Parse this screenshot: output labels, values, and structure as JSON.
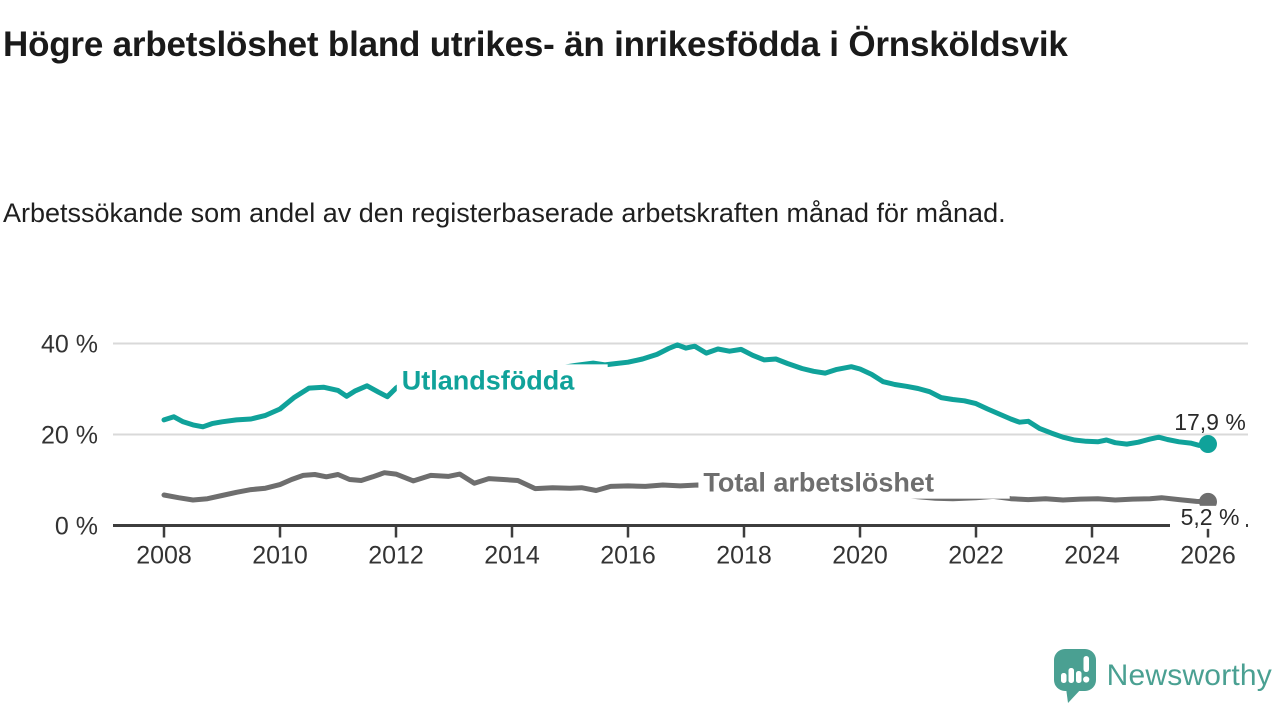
{
  "header": {
    "title": "Högre arbetslöshet bland utrikes- än inrikesfödda i Örnsköldsvik",
    "subtitle": "Arbetssökande som andel av den registerbaserade arbetskraften månad för månad."
  },
  "chart_data": {
    "type": "line",
    "title": "Högre arbetslöshet bland utrikes- än inrikesfödda i Örnsköldsvik",
    "subtitle": "Arbetssökande som andel av den registerbaserade arbetskraften månad för månad.",
    "xlabel": "",
    "ylabel": "",
    "grid": true,
    "x_ticks": [
      2008,
      2010,
      2012,
      2014,
      2016,
      2018,
      2020,
      2022,
      2024,
      2026
    ],
    "y_ticks": [
      {
        "value": 0,
        "label": "0 %"
      },
      {
        "value": 20,
        "label": "20 %"
      },
      {
        "value": 40,
        "label": "40 %"
      }
    ],
    "xlim": [
      2007.1,
      2026.7
    ],
    "ylim": [
      0,
      43
    ],
    "series": [
      {
        "name": "Total arbetslöshet",
        "color": "#6e6e6e",
        "end_label": "5,2 %",
        "end_label_position": "below",
        "inline_label": {
          "text": "Total arbetslöshet",
          "x": 2017.3,
          "y": 7.5
        },
        "points": [
          [
            2008.0,
            6.7
          ],
          [
            2008.25,
            6.1
          ],
          [
            2008.5,
            5.6
          ],
          [
            2008.75,
            5.9
          ],
          [
            2009.0,
            6.6
          ],
          [
            2009.25,
            7.3
          ],
          [
            2009.5,
            7.9
          ],
          [
            2009.75,
            8.2
          ],
          [
            2010.0,
            9.0
          ],
          [
            2010.2,
            10.1
          ],
          [
            2010.4,
            11.0
          ],
          [
            2010.6,
            11.2
          ],
          [
            2010.8,
            10.7
          ],
          [
            2011.0,
            11.2
          ],
          [
            2011.2,
            10.1
          ],
          [
            2011.4,
            9.9
          ],
          [
            2011.6,
            10.7
          ],
          [
            2011.8,
            11.6
          ],
          [
            2012.0,
            11.3
          ],
          [
            2012.3,
            9.8
          ],
          [
            2012.6,
            11.0
          ],
          [
            2012.9,
            10.8
          ],
          [
            2013.1,
            11.3
          ],
          [
            2013.35,
            9.3
          ],
          [
            2013.6,
            10.3
          ],
          [
            2013.85,
            10.1
          ],
          [
            2014.1,
            9.9
          ],
          [
            2014.4,
            8.1
          ],
          [
            2014.7,
            8.3
          ],
          [
            2015.0,
            8.2
          ],
          [
            2015.2,
            8.3
          ],
          [
            2015.45,
            7.7
          ],
          [
            2015.7,
            8.6
          ],
          [
            2016.0,
            8.7
          ],
          [
            2016.3,
            8.6
          ],
          [
            2016.6,
            8.9
          ],
          [
            2016.9,
            8.7
          ],
          [
            2017.2,
            8.9
          ],
          [
            2017.5,
            8.8
          ],
          [
            2018.0,
            8.6
          ],
          [
            2018.5,
            8.8
          ],
          [
            2019.0,
            8.2
          ],
          [
            2019.5,
            7.6
          ],
          [
            2020.0,
            7.4
          ],
          [
            2020.5,
            7.0
          ],
          [
            2021.0,
            6.3
          ],
          [
            2021.3,
            6.0
          ],
          [
            2021.6,
            5.9
          ],
          [
            2022.0,
            6.1
          ],
          [
            2022.3,
            6.4
          ],
          [
            2022.6,
            5.9
          ],
          [
            2022.9,
            5.7
          ],
          [
            2023.2,
            5.9
          ],
          [
            2023.5,
            5.6
          ],
          [
            2023.8,
            5.8
          ],
          [
            2024.1,
            5.9
          ],
          [
            2024.4,
            5.6
          ],
          [
            2024.7,
            5.8
          ],
          [
            2025.0,
            5.9
          ],
          [
            2025.2,
            6.1
          ],
          [
            2025.5,
            5.7
          ],
          [
            2025.8,
            5.3
          ],
          [
            2026.0,
            5.2
          ]
        ]
      },
      {
        "name": "Utlandsfödda",
        "color": "#10a29a",
        "end_label": "17,9 %",
        "end_label_position": "above",
        "inline_label": {
          "text": "Utlandsfödda",
          "x": 2012.1,
          "y": 29.9
        },
        "points": [
          [
            2008.0,
            23.2
          ],
          [
            2008.17,
            23.9
          ],
          [
            2008.33,
            22.8
          ],
          [
            2008.5,
            22.1
          ],
          [
            2008.67,
            21.7
          ],
          [
            2008.83,
            22.4
          ],
          [
            2009.0,
            22.8
          ],
          [
            2009.25,
            23.2
          ],
          [
            2009.5,
            23.4
          ],
          [
            2009.75,
            24.2
          ],
          [
            2010.0,
            25.6
          ],
          [
            2010.25,
            28.2
          ],
          [
            2010.5,
            30.2
          ],
          [
            2010.75,
            30.4
          ],
          [
            2011.0,
            29.7
          ],
          [
            2011.15,
            28.4
          ],
          [
            2011.3,
            29.6
          ],
          [
            2011.5,
            30.7
          ],
          [
            2011.7,
            29.3
          ],
          [
            2011.85,
            28.3
          ],
          [
            2012.0,
            30.2
          ],
          [
            2012.2,
            31.9
          ],
          [
            2012.4,
            33.2
          ],
          [
            2012.6,
            32.4
          ],
          [
            2012.8,
            33.3
          ],
          [
            2013.0,
            32.6
          ],
          [
            2013.3,
            32.9
          ],
          [
            2013.6,
            33.4
          ],
          [
            2013.9,
            33.1
          ],
          [
            2014.2,
            33.7
          ],
          [
            2014.5,
            34.1
          ],
          [
            2014.8,
            34.6
          ],
          [
            2015.1,
            35.2
          ],
          [
            2015.4,
            35.7
          ],
          [
            2015.6,
            35.3
          ],
          [
            2015.8,
            35.6
          ],
          [
            2016.0,
            35.9
          ],
          [
            2016.25,
            36.6
          ],
          [
            2016.5,
            37.6
          ],
          [
            2016.7,
            38.9
          ],
          [
            2016.85,
            39.7
          ],
          [
            2017.0,
            39.0
          ],
          [
            2017.15,
            39.4
          ],
          [
            2017.35,
            37.9
          ],
          [
            2017.55,
            38.8
          ],
          [
            2017.75,
            38.3
          ],
          [
            2017.95,
            38.7
          ],
          [
            2018.15,
            37.4
          ],
          [
            2018.35,
            36.4
          ],
          [
            2018.55,
            36.6
          ],
          [
            2018.75,
            35.6
          ],
          [
            2019.0,
            34.5
          ],
          [
            2019.2,
            33.9
          ],
          [
            2019.4,
            33.5
          ],
          [
            2019.6,
            34.3
          ],
          [
            2019.85,
            34.9
          ],
          [
            2020.0,
            34.4
          ],
          [
            2020.2,
            33.2
          ],
          [
            2020.4,
            31.6
          ],
          [
            2020.6,
            31.0
          ],
          [
            2020.8,
            30.6
          ],
          [
            2021.0,
            30.1
          ],
          [
            2021.2,
            29.4
          ],
          [
            2021.4,
            28.1
          ],
          [
            2021.6,
            27.7
          ],
          [
            2021.8,
            27.4
          ],
          [
            2022.0,
            26.8
          ],
          [
            2022.2,
            25.6
          ],
          [
            2022.4,
            24.5
          ],
          [
            2022.6,
            23.4
          ],
          [
            2022.75,
            22.7
          ],
          [
            2022.9,
            22.9
          ],
          [
            2023.1,
            21.3
          ],
          [
            2023.3,
            20.3
          ],
          [
            2023.5,
            19.4
          ],
          [
            2023.7,
            18.8
          ],
          [
            2023.9,
            18.5
          ],
          [
            2024.1,
            18.4
          ],
          [
            2024.25,
            18.8
          ],
          [
            2024.4,
            18.2
          ],
          [
            2024.6,
            17.9
          ],
          [
            2024.8,
            18.3
          ],
          [
            2025.0,
            19.0
          ],
          [
            2025.15,
            19.4
          ],
          [
            2025.3,
            18.9
          ],
          [
            2025.5,
            18.4
          ],
          [
            2025.7,
            18.1
          ],
          [
            2025.85,
            17.6
          ],
          [
            2026.0,
            17.9
          ]
        ]
      }
    ],
    "legend_position": "inline-labels",
    "last_values": {
      "Utlandsfödda": "17,9 %",
      "Total arbetslöshet": "5,2 %"
    }
  },
  "branding": {
    "logo_text": "Newsworthy",
    "logo_color": "#4aa092",
    "logo_icon": "bar-chart-speech-bubble-icon"
  }
}
